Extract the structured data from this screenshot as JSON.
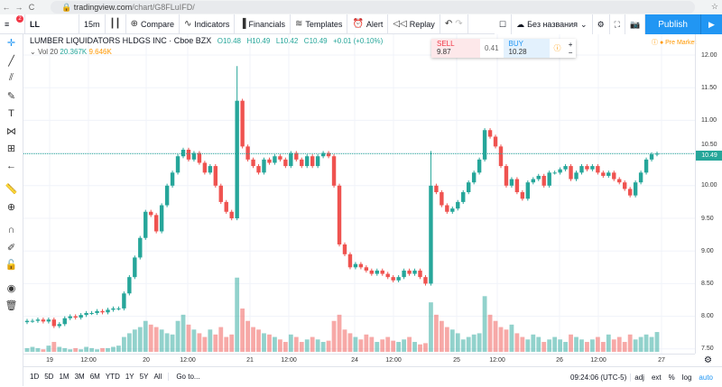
{
  "browser": {
    "url_host": "tradingview.com",
    "url_path": "/chart/G8FLuIFD/"
  },
  "toolbar": {
    "symbol": "LL",
    "interval": "15m",
    "compare": "Compare",
    "indicators": "Indicators",
    "financials": "Financials",
    "templates": "Templates",
    "alert": "Alert",
    "replay": "Replay",
    "layout_name": "Без названия",
    "publish": "Publish",
    "menu_badge": "2"
  },
  "legend": {
    "title": "LUMBER LIQUIDATORS HLDGS INC · Cboe BZX",
    "open": "O10.48",
    "high": "H10.49",
    "low": "L10.42",
    "close": "C10.49",
    "change": "+0.01 (+0.10%)",
    "vol_label": "Vol 20",
    "vol1": "20.367K",
    "vol2": "9.646K"
  },
  "trade": {
    "sell_label": "SELL",
    "sell_price": "9.87",
    "spread": "0.41",
    "buy_label": "BUY",
    "buy_price": "10.28",
    "plus": "+",
    "minus": "−"
  },
  "premarket": "Pre Market",
  "current_price": "10.49",
  "price_ticks": [
    "12.00",
    "11.50",
    "11.00",
    "10.50",
    "10.00",
    "9.50",
    "9.00",
    "8.50",
    "8.00",
    "7.50"
  ],
  "time_ticks": [
    "19",
    "12:00",
    "20",
    "12:00",
    "21",
    "12:00",
    "24",
    "12:00",
    "25",
    "12:00",
    "26",
    "12:00",
    "27"
  ],
  "bottom": {
    "ranges": [
      "1D",
      "5D",
      "1M",
      "3M",
      "6M",
      "YTD",
      "1Y",
      "5Y",
      "All"
    ],
    "goto": "Go to...",
    "clock": "09:24:06 (UTC-5)",
    "adj": "adj",
    "ext": "ext",
    "pct": "%",
    "log": "log",
    "auto": "auto"
  },
  "left_tools": [
    "crosshair-icon",
    "trend-line-icon",
    "pitchfork-icon",
    "brush-icon",
    "text-icon",
    "pattern-icon",
    "measure-icon",
    "back-arrow-icon",
    "ruler-icon",
    "zoom-in-icon",
    "magnet-icon",
    "lock-drawing-icon",
    "lock-icon",
    "eye-icon",
    "trash-icon"
  ],
  "colors": {
    "up": "#26a69a",
    "down": "#ef5350",
    "accent": "#2196f3"
  },
  "chart_data": {
    "type": "candlestick",
    "symbol": "LL",
    "interval": "15m",
    "ylim": [
      7.4,
      12.15
    ],
    "days": [
      {
        "label": "19",
        "close": [
          7.93,
          7.93,
          7.95,
          7.92,
          7.95,
          7.85,
          7.88,
          7.97,
          8.0,
          7.98,
          8.02,
          8.05,
          8.05,
          8.08,
          8.06,
          8.1,
          8.12,
          8.12
        ],
        "volume_k": [
          3,
          4,
          3,
          2,
          5,
          8,
          4,
          3,
          2,
          3,
          2,
          4,
          3,
          2,
          3,
          3,
          4,
          5
        ]
      },
      {
        "label": "20",
        "close": [
          8.35,
          8.6,
          8.9,
          9.2,
          9.6,
          9.55,
          9.3,
          9.7,
          10.0,
          10.2,
          10.45,
          10.55,
          10.4,
          10.5,
          10.35,
          10.2,
          10.3,
          10.0,
          9.75,
          9.6,
          9.5
        ],
        "volume_k": [
          12,
          15,
          18,
          20,
          25,
          22,
          20,
          18,
          15,
          14,
          25,
          30,
          22,
          18,
          15,
          12,
          18,
          14,
          20,
          12,
          14
        ]
      },
      {
        "label": "21",
        "close": [
          11.3,
          10.6,
          10.4,
          10.3,
          10.2,
          10.4,
          10.35,
          10.45,
          10.4,
          10.3,
          10.5,
          10.4,
          10.3,
          10.45,
          10.3,
          10.45,
          10.5,
          10.45
        ],
        "volume_k": [
          60,
          35,
          25,
          20,
          18,
          15,
          14,
          12,
          10,
          8,
          14,
          12,
          8,
          10,
          12,
          10,
          8,
          9
        ]
      },
      {
        "label": "24",
        "close": [
          10.0,
          9.1,
          8.95,
          8.75,
          8.8,
          8.75,
          8.7,
          8.65,
          8.7,
          8.65,
          8.6,
          8.55,
          8.6,
          8.7,
          8.65,
          8.7,
          8.6,
          8.5
        ],
        "volume_k": [
          25,
          30,
          18,
          15,
          12,
          10,
          14,
          12,
          8,
          10,
          12,
          9,
          8,
          10,
          12,
          8,
          6,
          7
        ]
      },
      {
        "label": "25",
        "close": [
          10.0,
          9.9,
          9.7,
          9.6,
          9.65,
          9.75,
          9.9,
          10.05,
          10.2,
          10.4,
          10.85,
          10.75,
          10.6,
          10.3,
          10.0,
          10.1,
          9.9,
          9.8,
          10.05,
          10.1,
          10.15,
          10.0,
          10.2
        ],
        "volume_k": [
          40,
          30,
          25,
          20,
          18,
          15,
          10,
          12,
          14,
          15,
          45,
          30,
          25,
          20,
          18,
          22,
          15,
          12,
          10,
          14,
          12,
          8,
          10
        ]
      },
      {
        "label": "26",
        "close": [
          10.2,
          10.25,
          10.3,
          10.1,
          10.2,
          10.3,
          10.25,
          10.3,
          10.2,
          10.15,
          10.2,
          10.1,
          10.05,
          9.95,
          9.85,
          10.05,
          10.2,
          10.4,
          10.48,
          10.49
        ],
        "volume_k": [
          12,
          10,
          8,
          14,
          12,
          10,
          8,
          10,
          12,
          8,
          14,
          10,
          12,
          8,
          14,
          10,
          12,
          14,
          12,
          16
        ]
      }
    ]
  }
}
